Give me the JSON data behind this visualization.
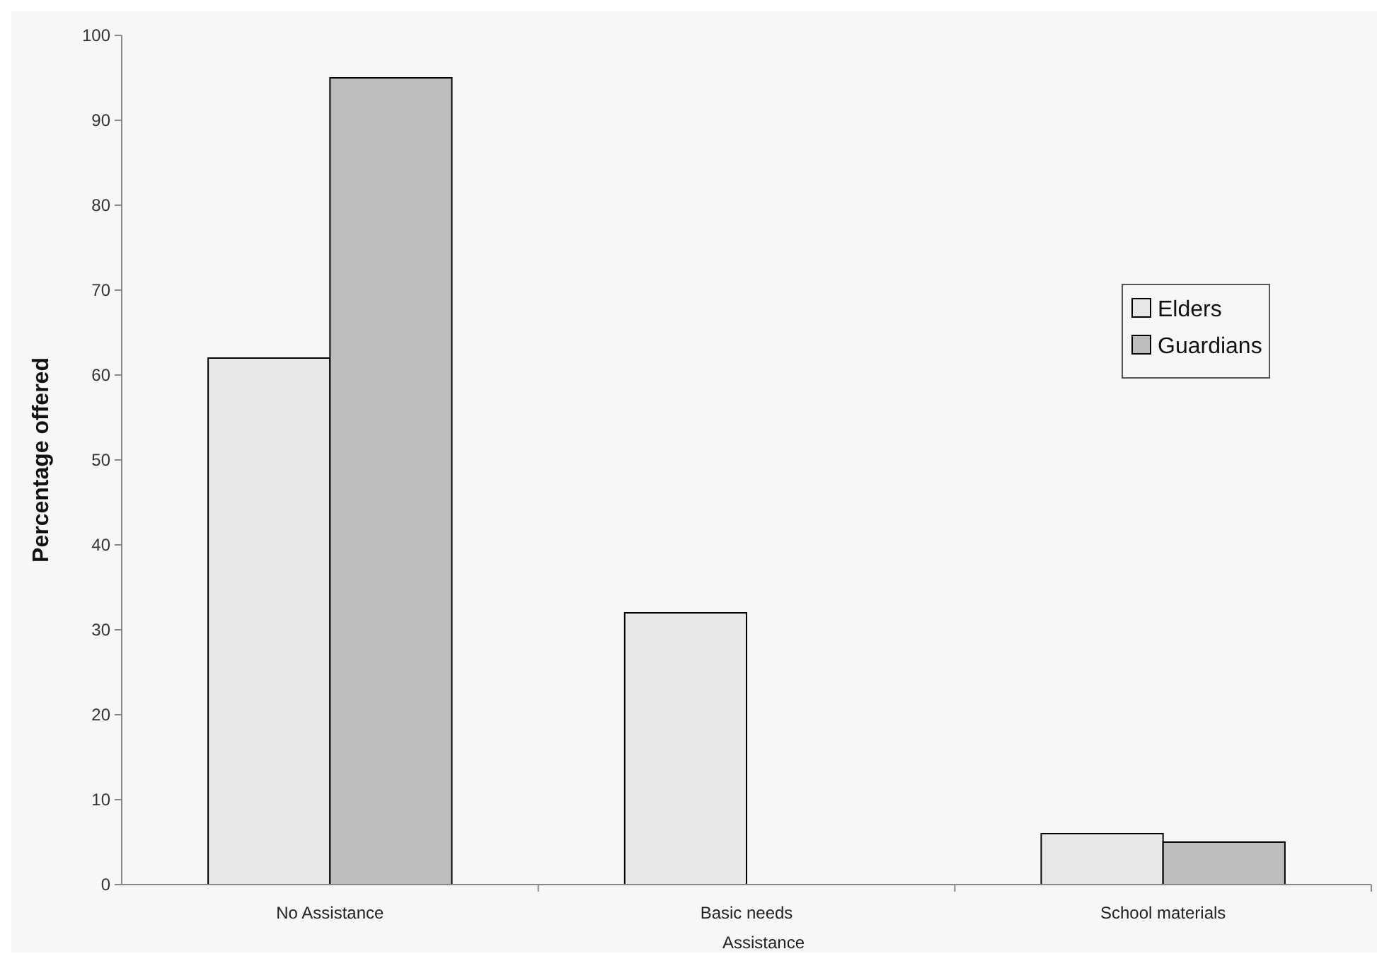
{
  "chart_data": {
    "type": "bar",
    "xlabel": "Assistance",
    "ylabel": "Percentage offered",
    "categories": [
      "No Assistance",
      "Basic needs",
      "School materials"
    ],
    "series": [
      {
        "name": "Elders",
        "color": "#e8e8e8",
        "values": [
          62,
          32,
          6
        ]
      },
      {
        "name": "Guardians",
        "color": "#bdbdbd",
        "values": [
          95,
          0,
          5
        ]
      }
    ],
    "ylim": [
      0,
      100
    ],
    "yticks": [
      0,
      10,
      20,
      30,
      40,
      50,
      60,
      70,
      80,
      90,
      100
    ],
    "grid": false,
    "legend": "right"
  }
}
